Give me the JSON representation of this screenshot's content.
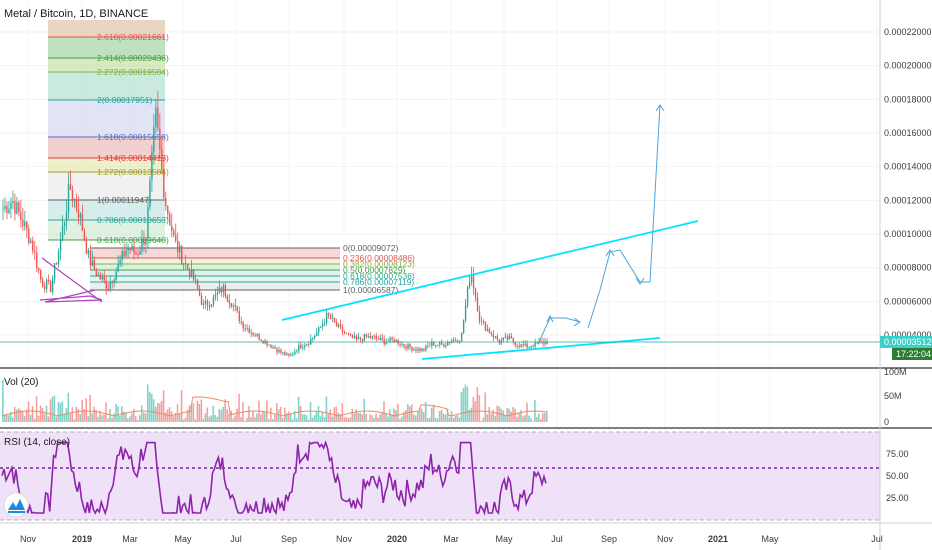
{
  "chart_data": [
    {
      "type": "candlestick",
      "title": "Metal / Bitcoin, 1D, BINANCE",
      "y_ticks": [
        "0.00022000",
        "0.00020000",
        "0.00018000",
        "0.00016000",
        "0.00014000",
        "0.00012000",
        "0.00010000",
        "0.00008000",
        "0.00006000",
        "0.00004000"
      ],
      "ylim": [
        2.4e-05,
        0.00022
      ],
      "x_ticks": [
        "Nov",
        "2019",
        "Mar",
        "May",
        "Jul",
        "Sep",
        "Nov",
        "2020",
        "Mar",
        "May",
        "Jul",
        "Sep",
        "Nov",
        "2021",
        "May",
        "Jul"
      ],
      "last_price": "0.00003512",
      "countdown": "17:22:04",
      "close_series": [
        0.000115,
        0.00012,
        0.000108,
        9.5e-05,
        7.2e-05,
        6.8e-05,
        9.5e-05,
        0.000128,
        0.000112,
        8.5e-05,
        7.5e-05,
        6.9e-05,
        8e-05,
        9.2e-05,
        8.8e-05,
        0.0001,
        0.00017,
        0.00012,
        9.5e-05,
        8.3e-05,
        7.3e-05,
        5.7e-05,
        6.1e-05,
        6.8e-05,
        5.9e-05,
        4.7e-05,
        4.2e-05,
        3.8e-05,
        3.4e-05,
        3e-05,
        2.7e-05,
        3.3e-05,
        3.6e-05,
        4.2e-05,
        5.2e-05,
        4.5e-05,
        4e-05,
        3.7e-05,
        3.9e-05,
        3.8e-05,
        3.6e-05,
        3.7e-05,
        3.4e-05,
        3.2e-05,
        3.1e-05,
        3.5e-05,
        3.4e-05,
        3.7e-05,
        3.8e-05,
        7.9e-05,
        4.8e-05,
        4.2e-05,
        3.6e-05,
        3.8e-05,
        3.4e-05,
        3.3e-05,
        3.5e-05,
        3.6e-05
      ],
      "fib_levels": [
        {
          "label": "2.618(0.00021661)",
          "color": "#e35553"
        },
        {
          "label": "2.414(0.00020436)",
          "color": "#43a047"
        },
        {
          "label": "2.272(0.00019584)",
          "color": "#7cb342"
        },
        {
          "label": "2(0.00017951)",
          "color": "#26a69a"
        },
        {
          "label": "1.618(0.00015658)",
          "color": "#5c6bc0"
        },
        {
          "label": "1.414(0.00014413)",
          "color": "#e53935"
        },
        {
          "label": "1.272(0.00013586)",
          "color": "#9e9d24"
        },
        {
          "label": "1(0.00011947)",
          "color": "#616161"
        },
        {
          "label": "0.786(0.00010653)",
          "color": "#26a69a"
        },
        {
          "label": "0.618(0.00009640)",
          "color": "#43a047"
        }
      ],
      "fib_levels_2": [
        {
          "label": "0(0.00009072)",
          "color": "#616161"
        },
        {
          "label": "0.236(0.00008486)",
          "color": "#e35553"
        },
        {
          "label": "0.382(0.00008123)",
          "color": "#7cb342"
        },
        {
          "label": "0.5(0.00007829)",
          "color": "#43a047"
        },
        {
          "label": "0.618(0.00007536)",
          "color": "#26a69a"
        },
        {
          "label": "0.786(0.00007119)",
          "color": "#26a69a"
        },
        {
          "label": "1(0.00006587)",
          "color": "#616161"
        }
      ]
    },
    {
      "type": "bar",
      "title": "Vol (20)",
      "y_ticks": [
        "100M",
        "50M",
        "0"
      ],
      "ylim": [
        0,
        100
      ]
    },
    {
      "type": "line",
      "title": "RSI (14, close)",
      "y_ticks": [
        "75.00",
        "50.00",
        "25.00"
      ],
      "ylim": [
        0,
        100
      ],
      "levels": [
        70,
        30
      ]
    }
  ],
  "colors": {
    "up": "#26a69a",
    "down": "#ef5350",
    "trend": "#00e5ff",
    "projection": "#4fa3d9",
    "rsi_line": "#8e24aa",
    "rsi_band": "#ead8f5",
    "badge": "#3bd0c9",
    "countdown_bg": "#2e7d32"
  },
  "logo_icon": "tradingview-logo-icon"
}
